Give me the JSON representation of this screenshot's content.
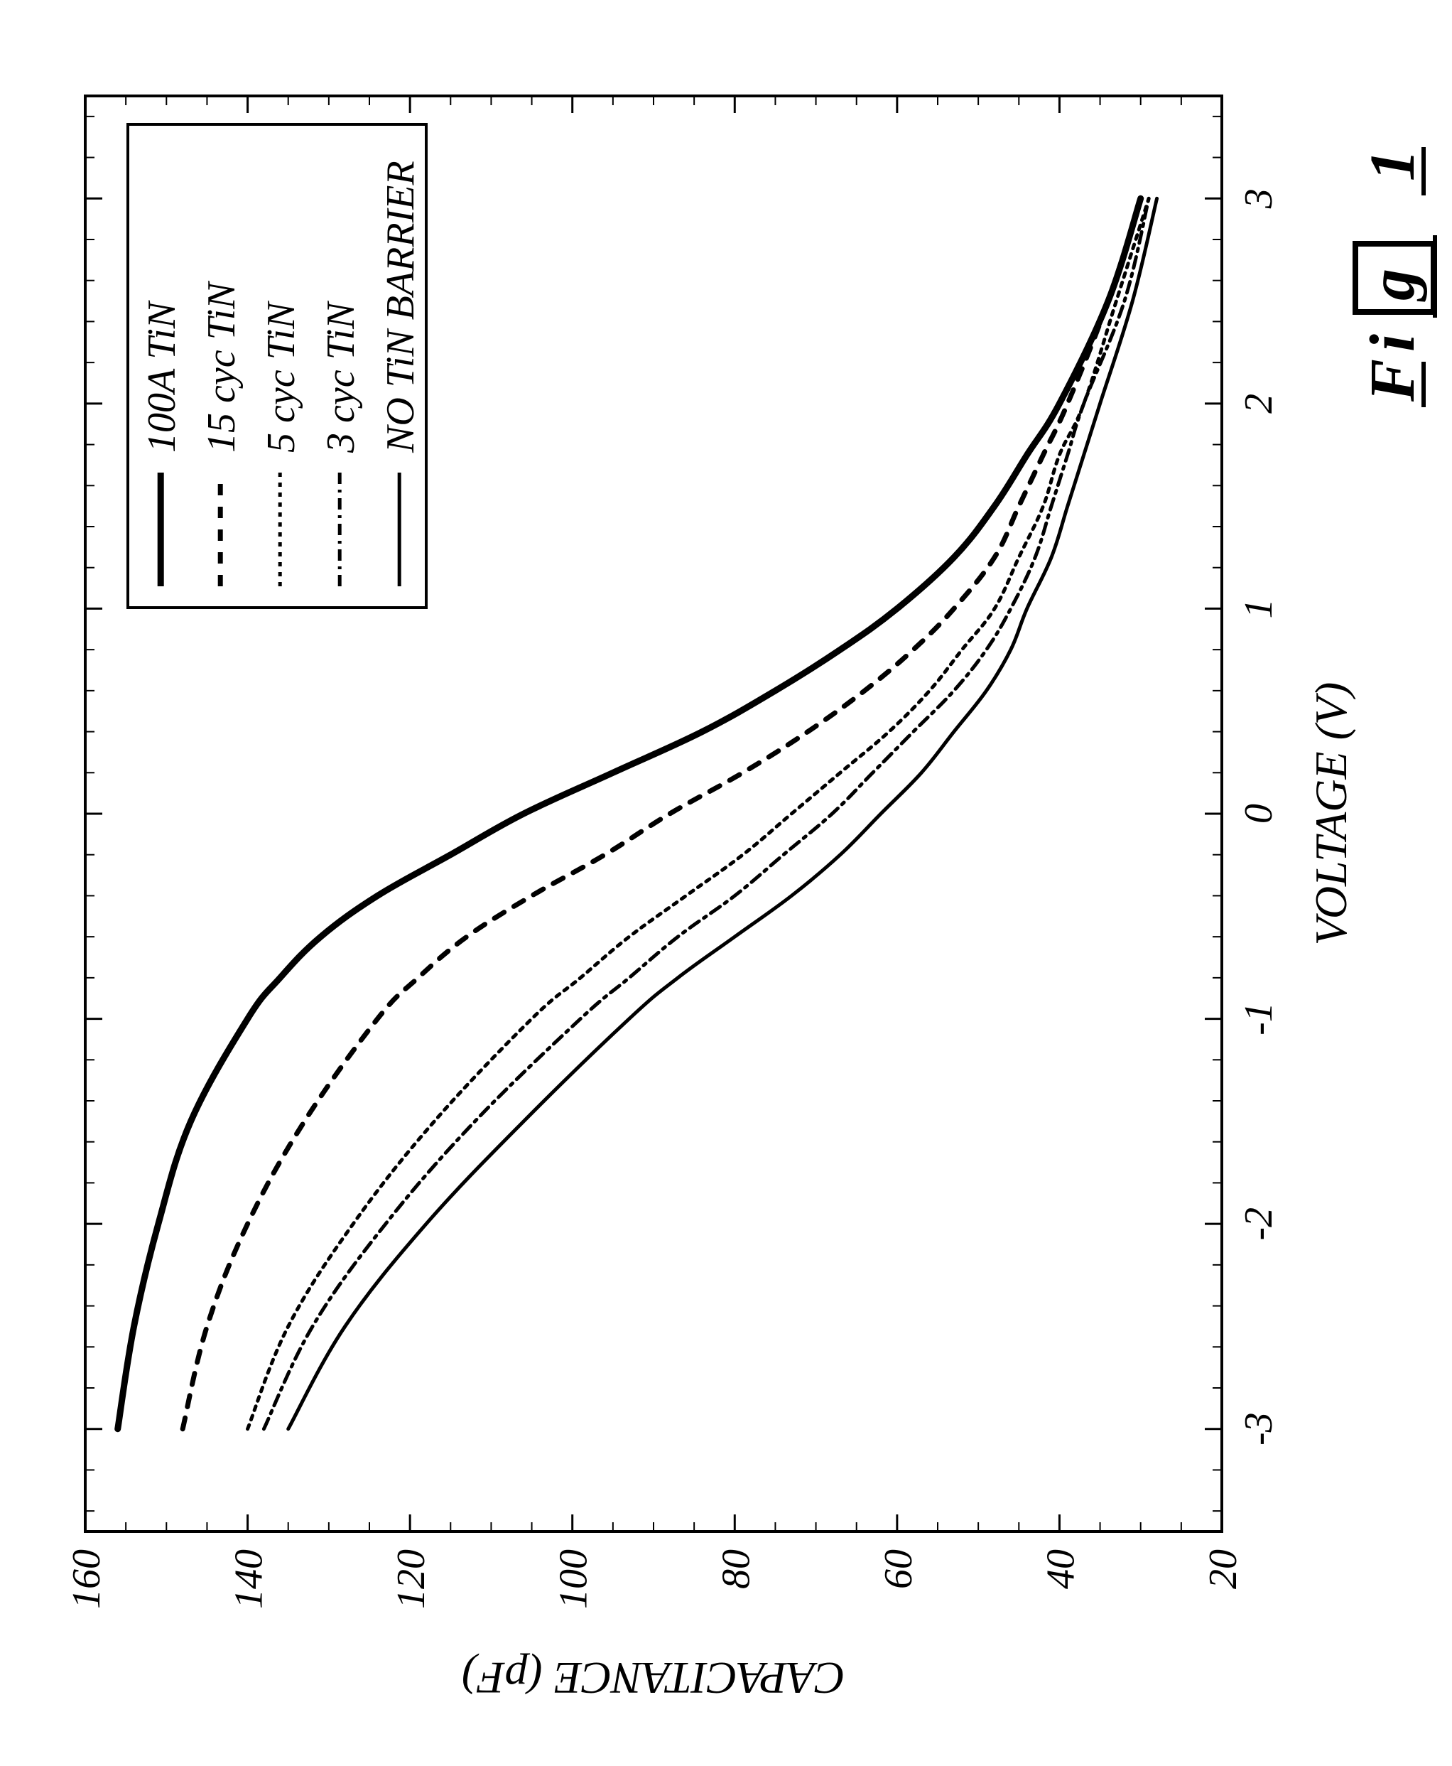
{
  "figure_label": "Fig 1",
  "chart": {
    "type": "line",
    "background_color": "#ffffff",
    "border_color": "#000000",
    "border_width": 4,
    "xlabel": "VOLTAGE (V)",
    "ylabel": "CAPACITANCE (pF)",
    "label_fontsize": 64,
    "tick_fontsize": 56,
    "xlim": [
      -3.5,
      3.5
    ],
    "ylim": [
      20,
      160
    ],
    "xticks": [
      -3,
      -2,
      -1,
      0,
      1,
      2,
      3
    ],
    "yticks": [
      20,
      40,
      60,
      80,
      100,
      120,
      140,
      160
    ],
    "minor_ticks_per_interval_x": 4,
    "minor_ticks_per_interval_y": 4,
    "series": [
      {
        "name": "100A TiN",
        "color": "#000000",
        "dash": "solid",
        "width": 9,
        "x": [
          -3.0,
          -2.5,
          -2.0,
          -1.5,
          -1.0,
          -0.8,
          -0.6,
          -0.4,
          -0.2,
          0.0,
          0.2,
          0.4,
          0.6,
          0.8,
          1.0,
          1.25,
          1.5,
          1.75,
          2.0,
          2.5,
          3.0
        ],
        "y": [
          156,
          154,
          151,
          147,
          140,
          136,
          131,
          124,
          115,
          106,
          95,
          84,
          75,
          67,
          60,
          53,
          48,
          44,
          40,
          34,
          30
        ]
      },
      {
        "name": "15 cyc TiN",
        "color": "#000000",
        "dash": "16 16",
        "width": 7,
        "x": [
          -3.0,
          -2.5,
          -2.0,
          -1.5,
          -1.0,
          -0.8,
          -0.6,
          -0.4,
          -0.2,
          0.0,
          0.2,
          0.4,
          0.6,
          0.8,
          1.0,
          1.25,
          1.5,
          1.75,
          2.0,
          2.5,
          3.0
        ],
        "y": [
          148,
          145,
          140,
          133,
          124,
          119,
          113,
          105,
          96,
          88,
          79,
          71,
          64,
          58,
          53,
          48,
          45,
          42,
          39,
          34,
          30
        ]
      },
      {
        "name": "5 cyc TiN",
        "color": "#000000",
        "dash": "6 8",
        "width": 5,
        "x": [
          -3.0,
          -2.5,
          -2.0,
          -1.5,
          -1.0,
          -0.8,
          -0.6,
          -0.4,
          -0.2,
          0.0,
          0.2,
          0.4,
          0.6,
          0.8,
          1.0,
          1.25,
          1.5,
          1.75,
          2.0,
          2.5,
          3.0
        ],
        "y": [
          140,
          135,
          127,
          117,
          105,
          99,
          93,
          86,
          79,
          73,
          67,
          61,
          56,
          52,
          48,
          45,
          42,
          40,
          37,
          33,
          29
        ]
      },
      {
        "name": "3 cyc TiN",
        "color": "#000000",
        "dash": "16 8 4 8",
        "width": 5,
        "x": [
          -3.0,
          -2.5,
          -2.0,
          -1.5,
          -1.0,
          -0.8,
          -0.6,
          -0.4,
          -0.2,
          0.0,
          0.2,
          0.4,
          0.6,
          0.8,
          1.0,
          1.25,
          1.5,
          1.75,
          2.0,
          2.5,
          3.0
        ],
        "y": [
          138,
          132,
          123,
          112,
          99,
          93,
          87,
          80,
          74,
          68,
          63,
          58,
          53,
          49,
          46,
          43,
          41,
          39,
          37,
          32,
          29
        ]
      },
      {
        "name": "NO TiN BARRIER",
        "color": "#000000",
        "dash": "solid",
        "width": 5,
        "x": [
          -3.0,
          -2.5,
          -2.0,
          -1.5,
          -1.0,
          -0.8,
          -0.6,
          -0.4,
          -0.2,
          0.0,
          0.2,
          0.4,
          0.6,
          0.8,
          1.0,
          1.25,
          1.5,
          1.75,
          2.0,
          2.5,
          3.0
        ],
        "y": [
          135,
          128,
          118,
          106,
          93,
          87,
          80,
          73,
          67,
          62,
          57,
          53,
          49,
          46,
          44,
          41,
          39,
          37,
          35,
          31,
          28
        ]
      }
    ],
    "legend": {
      "border_color": "#000000",
      "border_width": 4,
      "background": "#ffffff",
      "fontsize": 56
    }
  }
}
